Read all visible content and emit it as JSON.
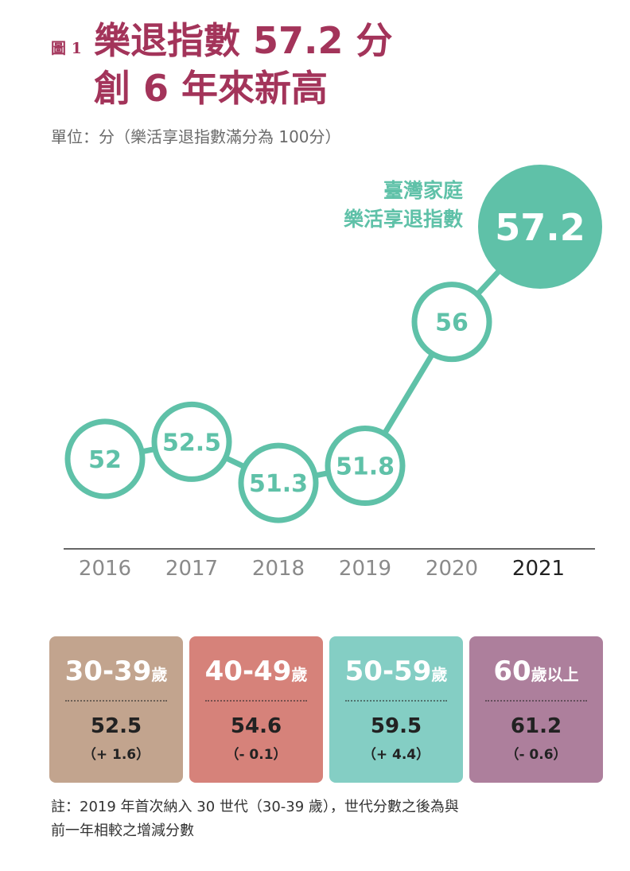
{
  "header": {
    "figure_label": "圖 1",
    "title_line1": "樂退指數 57.2 分",
    "title_line2": "創 6 年來新高",
    "unit": "單位：分（樂活享退指數滿分為 100分）"
  },
  "colors": {
    "title": "#a3345a",
    "series": "#5fc1a8",
    "axis": "#333333",
    "card_30_39": "#c2a48e",
    "card_40_49": "#d6827a",
    "card_50_59": "#84cec4",
    "card_60_plus": "#ad7f9c"
  },
  "chart_data": {
    "type": "line",
    "title": "樂退指數 57.2 分 創 6 年來新高",
    "series_label": [
      "臺灣家庭",
      "樂活享退指數"
    ],
    "categories": [
      "2016",
      "2017",
      "2018",
      "2019",
      "2020",
      "2021"
    ],
    "series": [
      {
        "name": "臺灣家庭樂活享退指數",
        "values": [
          52,
          52.5,
          51.3,
          51.8,
          56,
          57.2
        ]
      }
    ],
    "data_labels": [
      "52",
      "52.5",
      "51.3",
      "51.8",
      "56",
      "57.2"
    ],
    "highlight_category": "2021",
    "ylabel": "分",
    "ylim": [
      51,
      57.5
    ],
    "grid": false
  },
  "age_groups": [
    {
      "age": "30-39",
      "suffix": "歲",
      "score": "52.5",
      "delta": "（+ 1.6）",
      "color": "#c2a48e"
    },
    {
      "age": "40-49",
      "suffix": "歲",
      "score": "54.6",
      "delta": "（- 0.1）",
      "color": "#d6827a"
    },
    {
      "age": "50-59",
      "suffix": "歲",
      "score": "59.5",
      "delta": "（+ 4.4）",
      "color": "#84cec4"
    },
    {
      "age": "60",
      "suffix": "歲以上",
      "score": "61.2",
      "delta": "（- 0.6）",
      "color": "#ad7f9c"
    }
  ],
  "note": {
    "line1": "註：2019 年首次納入 30 世代（30-39 歲），世代分數之後為與",
    "line2": "前一年相較之增減分數"
  }
}
